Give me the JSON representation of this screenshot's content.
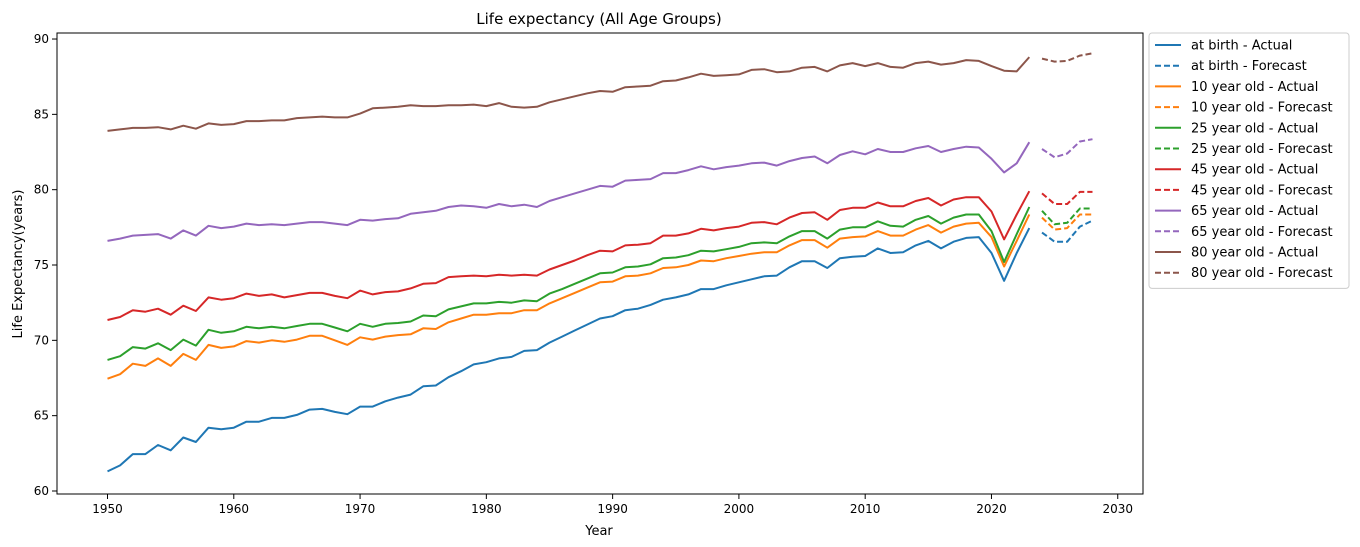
{
  "chart_data": {
    "type": "line",
    "title": "Life expectancy (All Age Groups)",
    "xlabel": "Year",
    "ylabel": "Life Expectancy(years)",
    "xlim": [
      1946,
      2032
    ],
    "ylim": [
      59.8,
      90.4
    ],
    "xticks": [
      1950,
      1960,
      1970,
      1980,
      1990,
      2000,
      2010,
      2020,
      2030
    ],
    "yticks": [
      60,
      65,
      70,
      75,
      80,
      85,
      90
    ],
    "grid": false,
    "legend_position": "outside-right-top",
    "actual_years": [
      1950,
      1951,
      1952,
      1953,
      1954,
      1955,
      1956,
      1957,
      1958,
      1959,
      1960,
      1961,
      1962,
      1963,
      1964,
      1965,
      1966,
      1967,
      1968,
      1969,
      1970,
      1971,
      1972,
      1973,
      1974,
      1975,
      1976,
      1977,
      1978,
      1979,
      1980,
      1981,
      1982,
      1983,
      1984,
      1985,
      1986,
      1987,
      1988,
      1989,
      1990,
      1991,
      1992,
      1993,
      1994,
      1995,
      1996,
      1997,
      1998,
      1999,
      2000,
      2001,
      2002,
      2003,
      2004,
      2005,
      2006,
      2007,
      2008,
      2009,
      2010,
      2011,
      2012,
      2013,
      2014,
      2015,
      2016,
      2017,
      2018,
      2019,
      2020,
      2021,
      2022,
      2023
    ],
    "forecast_years": [
      2024,
      2025,
      2026,
      2027,
      2028
    ],
    "series": [
      {
        "name": "at birth - Actual",
        "group": "at birth",
        "style": "solid",
        "color": "#1f77b4",
        "values": [
          61.3,
          61.7,
          62.45,
          62.45,
          63.05,
          62.7,
          63.55,
          63.25,
          64.2,
          64.1,
          64.2,
          64.6,
          64.6,
          64.85,
          64.85,
          65.05,
          65.4,
          65.45,
          65.25,
          65.1,
          65.6,
          65.6,
          65.95,
          66.2,
          66.4,
          66.95,
          67.0,
          67.55,
          67.95,
          68.4,
          68.55,
          68.8,
          68.9,
          69.3,
          69.35,
          69.85,
          70.25,
          70.65,
          71.05,
          71.45,
          71.6,
          72.0,
          72.1,
          72.35,
          72.7,
          72.85,
          73.05,
          73.4,
          73.4,
          73.65,
          73.85,
          74.05,
          74.25,
          74.3,
          74.85,
          75.25,
          75.25,
          74.8,
          75.45,
          75.55,
          75.6,
          76.1,
          75.8,
          75.85,
          76.3,
          76.6,
          76.1,
          76.55,
          76.8,
          76.85,
          75.8,
          73.95,
          75.8,
          77.45
        ]
      },
      {
        "name": "at birth - Forecast",
        "group": "at birth",
        "style": "dashed",
        "color": "#1f77b4",
        "values": [
          77.15,
          76.55,
          76.55,
          77.55,
          77.95
        ]
      },
      {
        "name": "10 year old - Actual",
        "group": "10 year old",
        "style": "solid",
        "color": "#ff7f0e",
        "values": [
          67.45,
          67.75,
          68.45,
          68.3,
          68.8,
          68.3,
          69.1,
          68.7,
          69.7,
          69.5,
          69.6,
          69.95,
          69.85,
          70.0,
          69.9,
          70.05,
          70.3,
          70.3,
          70.0,
          69.7,
          70.2,
          70.05,
          70.25,
          70.35,
          70.4,
          70.8,
          70.75,
          71.2,
          71.45,
          71.7,
          71.7,
          71.8,
          71.8,
          72.0,
          72.0,
          72.45,
          72.8,
          73.15,
          73.5,
          73.85,
          73.9,
          74.25,
          74.3,
          74.45,
          74.8,
          74.85,
          75.0,
          75.3,
          75.25,
          75.45,
          75.6,
          75.75,
          75.85,
          75.85,
          76.3,
          76.65,
          76.65,
          76.15,
          76.75,
          76.85,
          76.9,
          77.25,
          76.95,
          76.95,
          77.35,
          77.65,
          77.15,
          77.55,
          77.75,
          77.8,
          76.85,
          74.9,
          76.6,
          78.35
        ]
      },
      {
        "name": "10 year old - Forecast",
        "group": "10 year old",
        "style": "dashed",
        "color": "#ff7f0e",
        "values": [
          78.15,
          77.35,
          77.45,
          78.35,
          78.35
        ]
      },
      {
        "name": "25 year old - Actual",
        "group": "25 year old",
        "style": "solid",
        "color": "#2ca02c",
        "values": [
          68.7,
          68.95,
          69.55,
          69.45,
          69.8,
          69.35,
          70.05,
          69.65,
          70.7,
          70.5,
          70.6,
          70.9,
          70.8,
          70.9,
          70.8,
          70.95,
          71.1,
          71.1,
          70.85,
          70.6,
          71.1,
          70.9,
          71.1,
          71.15,
          71.25,
          71.65,
          71.6,
          72.05,
          72.25,
          72.45,
          72.45,
          72.55,
          72.5,
          72.65,
          72.6,
          73.1,
          73.4,
          73.75,
          74.1,
          74.45,
          74.5,
          74.85,
          74.9,
          75.05,
          75.45,
          75.5,
          75.65,
          75.95,
          75.9,
          76.05,
          76.2,
          76.45,
          76.5,
          76.45,
          76.9,
          77.25,
          77.25,
          76.75,
          77.35,
          77.5,
          77.5,
          77.9,
          77.6,
          77.55,
          78.0,
          78.25,
          77.75,
          78.15,
          78.35,
          78.35,
          77.25,
          75.2,
          77.05,
          78.85
        ]
      },
      {
        "name": "25 year old - Forecast",
        "group": "25 year old",
        "style": "dashed",
        "color": "#2ca02c",
        "values": [
          78.6,
          77.7,
          77.8,
          78.75,
          78.75
        ]
      },
      {
        "name": "45 year old - Actual",
        "group": "45 year old",
        "style": "solid",
        "color": "#d62728",
        "values": [
          71.35,
          71.55,
          72.0,
          71.9,
          72.1,
          71.7,
          72.3,
          71.95,
          72.85,
          72.7,
          72.8,
          73.1,
          72.95,
          73.05,
          72.85,
          73.0,
          73.15,
          73.15,
          72.95,
          72.8,
          73.3,
          73.05,
          73.2,
          73.25,
          73.45,
          73.75,
          73.8,
          74.2,
          74.25,
          74.3,
          74.25,
          74.35,
          74.3,
          74.35,
          74.3,
          74.7,
          75.0,
          75.3,
          75.65,
          75.95,
          75.9,
          76.3,
          76.35,
          76.45,
          76.95,
          76.95,
          77.1,
          77.4,
          77.3,
          77.45,
          77.55,
          77.8,
          77.85,
          77.7,
          78.15,
          78.45,
          78.5,
          78.0,
          78.65,
          78.8,
          78.8,
          79.15,
          78.9,
          78.9,
          79.25,
          79.45,
          78.95,
          79.35,
          79.5,
          79.5,
          78.55,
          76.7,
          78.35,
          79.9
        ]
      },
      {
        "name": "45 year old - Forecast",
        "group": "45 year old",
        "style": "dashed",
        "color": "#d62728",
        "values": [
          79.75,
          79.05,
          79.05,
          79.85,
          79.85
        ]
      },
      {
        "name": "65 year old - Actual",
        "group": "65 year old",
        "style": "solid",
        "color": "#9467bd",
        "values": [
          76.6,
          76.75,
          76.95,
          77.0,
          77.05,
          76.75,
          77.3,
          76.95,
          77.6,
          77.45,
          77.55,
          77.75,
          77.65,
          77.7,
          77.65,
          77.75,
          77.85,
          77.85,
          77.75,
          77.65,
          78.0,
          77.95,
          78.05,
          78.1,
          78.4,
          78.5,
          78.6,
          78.85,
          78.95,
          78.9,
          78.8,
          79.05,
          78.9,
          79.0,
          78.85,
          79.25,
          79.5,
          79.75,
          80.0,
          80.25,
          80.2,
          80.6,
          80.65,
          80.7,
          81.1,
          81.1,
          81.3,
          81.55,
          81.35,
          81.5,
          81.6,
          81.75,
          81.8,
          81.6,
          81.9,
          82.1,
          82.2,
          81.75,
          82.3,
          82.55,
          82.35,
          82.7,
          82.5,
          82.5,
          82.75,
          82.9,
          82.5,
          82.7,
          82.85,
          82.8,
          82.05,
          81.15,
          81.75,
          83.15
        ]
      },
      {
        "name": "65 year old - Forecast",
        "group": "65 year old",
        "style": "dashed",
        "color": "#9467bd",
        "values": [
          82.7,
          82.15,
          82.4,
          83.2,
          83.35
        ]
      },
      {
        "name": "80 year old - Actual",
        "group": "80 year old",
        "style": "solid",
        "color": "#8c564b",
        "values": [
          83.9,
          84.0,
          84.1,
          84.1,
          84.15,
          84.0,
          84.25,
          84.05,
          84.4,
          84.3,
          84.35,
          84.55,
          84.55,
          84.6,
          84.6,
          84.75,
          84.8,
          84.85,
          84.8,
          84.8,
          85.05,
          85.4,
          85.45,
          85.5,
          85.6,
          85.55,
          85.55,
          85.6,
          85.6,
          85.65,
          85.55,
          85.75,
          85.5,
          85.45,
          85.5,
          85.8,
          86.0,
          86.2,
          86.4,
          86.55,
          86.5,
          86.8,
          86.85,
          86.9,
          87.2,
          87.25,
          87.45,
          87.7,
          87.55,
          87.6,
          87.65,
          87.95,
          88.0,
          87.8,
          87.85,
          88.1,
          88.15,
          87.85,
          88.25,
          88.4,
          88.2,
          88.4,
          88.15,
          88.1,
          88.4,
          88.5,
          88.3,
          88.4,
          88.6,
          88.55,
          88.2,
          87.9,
          87.85,
          88.8
        ]
      },
      {
        "name": "80 year old - Forecast",
        "group": "80 year old",
        "style": "dashed",
        "color": "#8c564b",
        "values": [
          88.7,
          88.5,
          88.55,
          88.9,
          89.05
        ]
      }
    ]
  }
}
